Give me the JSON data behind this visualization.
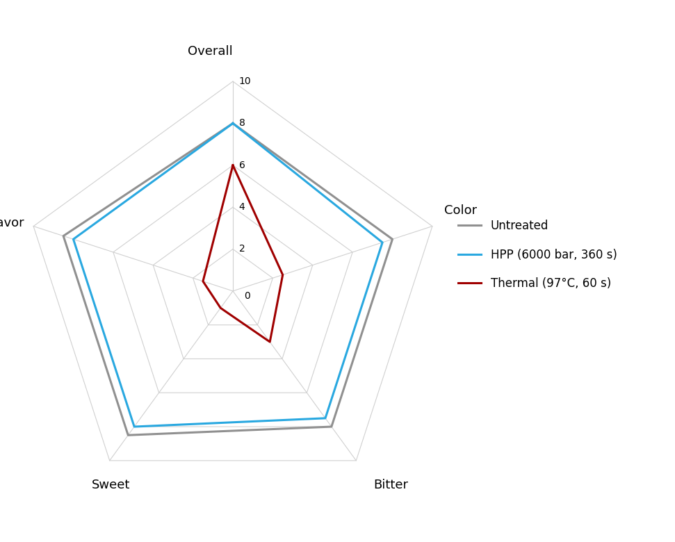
{
  "categories": [
    "Overall",
    "Color",
    "Bitter",
    "Sweet",
    "Flavor"
  ],
  "series": [
    {
      "label": "Untreated",
      "values": [
        8.0,
        8.0,
        8.0,
        8.5,
        8.5
      ],
      "color": "#909090",
      "linewidth": 2.2
    },
    {
      "label": "HPP (6000 bar, 360 s)",
      "values": [
        8.0,
        7.5,
        7.5,
        8.0,
        8.0
      ],
      "color": "#29A8E0",
      "linewidth": 2.2
    },
    {
      "label": "Thermal (97°C, 60 s)",
      "values": [
        6.0,
        2.5,
        3.0,
        1.0,
        1.5
      ],
      "color": "#A00000",
      "linewidth": 2.2
    }
  ],
  "rmax": 10,
  "rticks": [
    0,
    2,
    4,
    6,
    8,
    10
  ],
  "rtick_labels": [
    "0",
    "2",
    "4",
    "6",
    "8",
    "10"
  ],
  "grid_color": "#D0D0D0",
  "background_color": "#FFFFFF",
  "legend_fontsize": 12,
  "label_fontsize": 13,
  "figsize": [
    9.71,
    7.8
  ],
  "dpi": 100
}
